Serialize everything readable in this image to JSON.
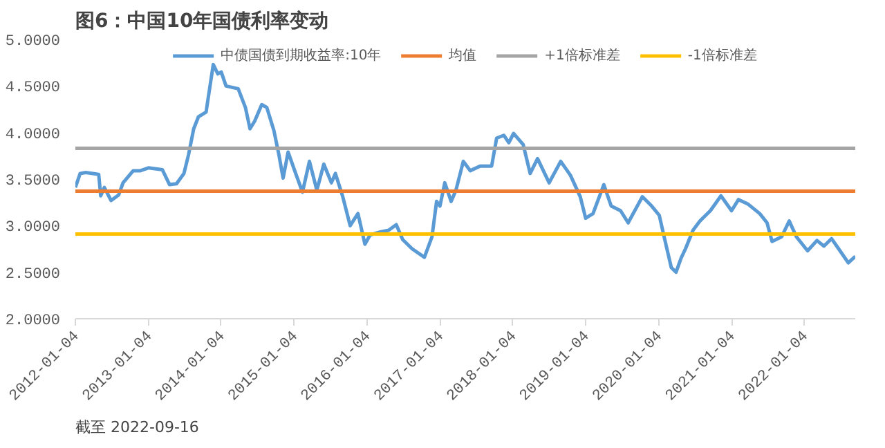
{
  "chart_data": {
    "type": "line",
    "title": "图6：中国10年国债利率变动",
    "x": [
      "2012-01-04",
      "2012-01-28",
      "2012-02-25",
      "2012-04-30",
      "2012-05-10",
      "2012-05-28",
      "2012-07-01",
      "2012-08-08",
      "2012-08-30",
      "2012-10-20",
      "2012-11-25",
      "2013-01-04",
      "2013-03-15",
      "2013-04-20",
      "2013-05-25",
      "2013-07-01",
      "2013-07-24",
      "2013-08-19",
      "2013-09-12",
      "2013-10-20",
      "2013-11-25",
      "2013-12-18",
      "2014-01-04",
      "2014-01-28",
      "2014-03-30",
      "2014-05-05",
      "2014-05-28",
      "2014-06-20",
      "2014-07-26",
      "2014-08-20",
      "2014-09-25",
      "2014-10-20",
      "2014-11-10",
      "2014-12-05",
      "2015-01-12",
      "2015-02-15",
      "2015-03-22",
      "2015-04-28",
      "2015-06-02",
      "2015-07-10",
      "2015-07-30",
      "2015-09-05",
      "2015-10-12",
      "2015-11-20",
      "2015-12-25",
      "2016-01-20",
      "2016-03-08",
      "2016-04-22",
      "2016-05-30",
      "2016-07-01",
      "2016-08-18",
      "2016-10-18",
      "2016-11-25",
      "2016-12-18",
      "2017-01-04",
      "2017-01-28",
      "2017-03-01",
      "2017-03-25",
      "2017-05-01",
      "2017-06-05",
      "2017-07-24",
      "2017-09-20",
      "2017-10-15",
      "2017-11-20",
      "2017-12-15",
      "2018-01-08",
      "2018-02-25",
      "2018-04-01",
      "2018-05-08",
      "2018-07-05",
      "2018-09-01",
      "2018-10-20",
      "2018-12-08",
      "2019-01-04",
      "2019-02-10",
      "2019-04-05",
      "2019-05-12",
      "2019-06-28",
      "2019-08-05",
      "2019-10-15",
      "2019-12-01",
      "2020-01-08",
      "2020-01-30",
      "2020-03-08",
      "2020-04-01",
      "2020-04-26",
      "2020-05-18",
      "2020-06-25",
      "2020-07-30",
      "2020-09-20",
      "2020-11-12",
      "2021-01-04",
      "2021-02-08",
      "2021-03-28",
      "2021-05-25",
      "2021-07-01",
      "2021-07-26",
      "2021-09-12",
      "2021-10-20",
      "2021-11-25",
      "2022-01-20",
      "2022-03-08",
      "2022-04-12",
      "2022-05-20",
      "2022-06-25",
      "2022-08-12",
      "2022-09-16"
    ],
    "series": [
      {
        "name": "中债国债到期收益率:10年",
        "color": "#5b9bd5",
        "values": [
          3.41,
          3.56,
          3.57,
          3.55,
          3.32,
          3.41,
          3.27,
          3.33,
          3.46,
          3.59,
          3.59,
          3.62,
          3.6,
          3.44,
          3.45,
          3.56,
          3.76,
          4.04,
          4.17,
          4.22,
          4.73,
          4.63,
          4.65,
          4.5,
          4.47,
          4.27,
          4.04,
          4.12,
          4.3,
          4.27,
          4.02,
          3.76,
          3.51,
          3.79,
          3.56,
          3.36,
          3.69,
          3.38,
          3.66,
          3.46,
          3.56,
          3.31,
          3.0,
          3.13,
          2.8,
          2.9,
          2.93,
          2.95,
          3.01,
          2.85,
          2.75,
          2.66,
          2.88,
          3.26,
          3.21,
          3.46,
          3.26,
          3.38,
          3.69,
          3.59,
          3.64,
          3.64,
          3.94,
          3.97,
          3.89,
          3.99,
          3.87,
          3.56,
          3.72,
          3.46,
          3.69,
          3.54,
          3.31,
          3.08,
          3.13,
          3.44,
          3.21,
          3.16,
          3.03,
          3.31,
          3.21,
          3.11,
          2.9,
          2.55,
          2.5,
          2.65,
          2.75,
          2.95,
          3.05,
          3.16,
          3.32,
          3.16,
          3.28,
          3.23,
          3.13,
          3.03,
          2.83,
          2.88,
          3.05,
          2.88,
          2.73,
          2.84,
          2.78,
          2.86,
          2.75,
          2.6,
          2.67
        ]
      }
    ],
    "ref_lines": [
      {
        "axis": "y",
        "value": 3.37,
        "label": "均值",
        "color": "#ed7d31"
      },
      {
        "axis": "y",
        "value": 3.83,
        "label": "+1倍标准差",
        "color": "#a5a5a5"
      },
      {
        "axis": "y",
        "value": 2.91,
        "label": "-1倍标准差",
        "color": "#ffc000"
      }
    ],
    "xlim": [
      "2012-01-04",
      "2022-09-16"
    ],
    "xticks": [
      "2012-01-04",
      "2013-01-04",
      "2014-01-04",
      "2015-01-04",
      "2016-01-04",
      "2017-01-04",
      "2018-01-04",
      "2019-01-04",
      "2020-01-04",
      "2021-01-04",
      "2022-01-04"
    ],
    "ylim": [
      2.0,
      5.0
    ],
    "yticks": [
      {
        "value": 2.0,
        "label": "2.0000"
      },
      {
        "value": 2.5,
        "label": "2.5000"
      },
      {
        "value": 3.0,
        "label": "3.0000"
      },
      {
        "value": 3.5,
        "label": "3.5000"
      },
      {
        "value": 4.0,
        "label": "4.0000"
      },
      {
        "value": 4.5,
        "label": "4.5000"
      },
      {
        "value": 5.0,
        "label": "5.0000"
      }
    ],
    "grid": false,
    "legend": "top",
    "annotations": [
      "截至 2022-09-16"
    ]
  }
}
